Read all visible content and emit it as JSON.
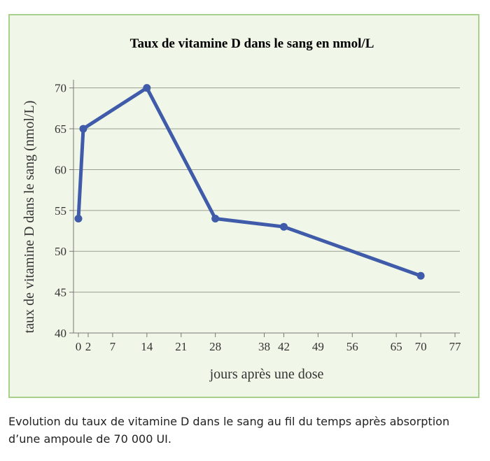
{
  "chart_data": {
    "type": "line",
    "title": "Taux de vitamine D dans le sang en nmol/L",
    "xlabel": "jours après une dose",
    "ylabel": "taux de vitamine D dans le sang (nmol/L)",
    "xlim": [
      -1,
      78
    ],
    "ylim": [
      40,
      71
    ],
    "x_ticks": [
      0,
      2,
      7,
      14,
      21,
      28,
      38,
      42,
      49,
      56,
      65,
      70,
      77
    ],
    "y_ticks": [
      40,
      45,
      50,
      55,
      60,
      65,
      70
    ],
    "grid": "horizontal",
    "series": [
      {
        "color": "#3f5ba9",
        "x": [
          0,
          1,
          14,
          28,
          42,
          70
        ],
        "y": [
          54,
          65,
          70,
          54,
          53,
          47
        ]
      }
    ]
  },
  "caption": "Evolution du taux de vitamine D dans le sang au fil du temps après absorption d’une ampoule de 70 000 UI."
}
